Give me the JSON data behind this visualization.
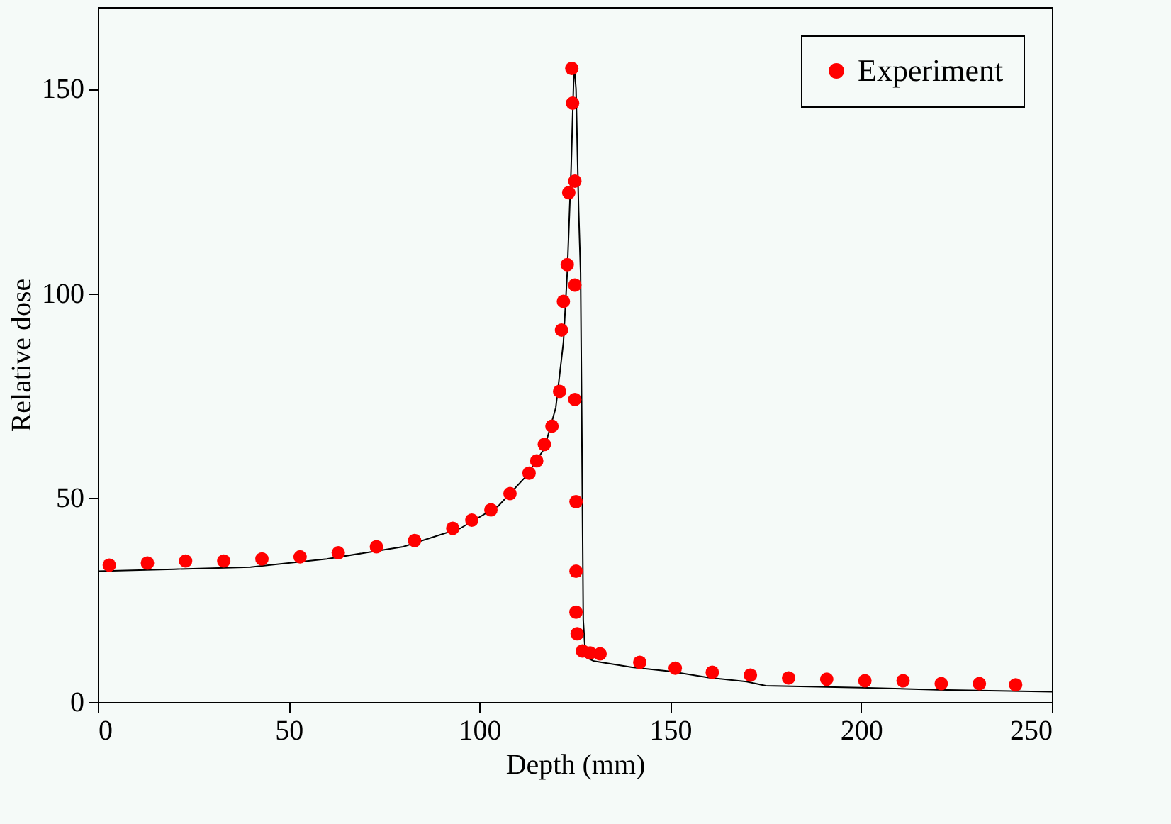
{
  "chart_data": {
    "type": "scatter",
    "xlabel": "Depth (mm)",
    "ylabel": "Relative dose",
    "xlim": [
      0,
      250
    ],
    "ylim": [
      0,
      170
    ],
    "xticks": [
      0,
      50,
      100,
      150,
      200,
      250
    ],
    "yticks": [
      0,
      50,
      100,
      150
    ],
    "grid": false,
    "legend": "top right",
    "series": [
      {
        "name": "Experiment",
        "marker": "circle",
        "color": "#ff0000",
        "x": [
          3,
          13,
          23,
          33,
          43,
          53,
          63,
          73,
          83,
          93,
          98,
          103,
          108,
          113,
          115,
          117,
          119,
          121,
          121.5,
          122,
          123,
          123.4,
          124.2,
          124.4,
          125,
          125,
          125,
          125.3,
          125.3,
          125.3,
          125.6,
          127,
          129,
          131.6,
          142,
          151.3,
          161,
          171,
          181,
          191,
          201,
          211,
          221,
          231,
          240.5
        ],
        "values": [
          33.5,
          34,
          34.5,
          34.5,
          35,
          35.5,
          36.5,
          38,
          39.5,
          42.5,
          44.5,
          47,
          51,
          56,
          59,
          63,
          67.5,
          76,
          91,
          98,
          107,
          124.6,
          155,
          146.5,
          127.4,
          102,
          74,
          49,
          32,
          22,
          16.7,
          12.5,
          12,
          11.8,
          9.7,
          8.3,
          7.3,
          6.6,
          5.9,
          5.6,
          5.2,
          5.2,
          4.5,
          4.5,
          4.2
        ]
      },
      {
        "type": "line",
        "color": "#000000",
        "x": [
          0,
          20,
          40,
          60,
          80,
          95,
          105,
          112,
          117,
          120,
          122,
          123,
          124,
          124.8,
          125.3,
          126,
          126.5,
          126.8,
          127.2,
          127.8,
          130,
          140,
          150,
          160,
          170,
          175,
          200,
          220,
          250
        ],
        "values": [
          32,
          32.5,
          33,
          35,
          38,
          42.5,
          48,
          55,
          62,
          72,
          88,
          105,
          130,
          156,
          150,
          120,
          105,
          70,
          20,
          11,
          10,
          8.5,
          7.5,
          6,
          5,
          4,
          3.5,
          3,
          2.5
        ]
      }
    ]
  }
}
